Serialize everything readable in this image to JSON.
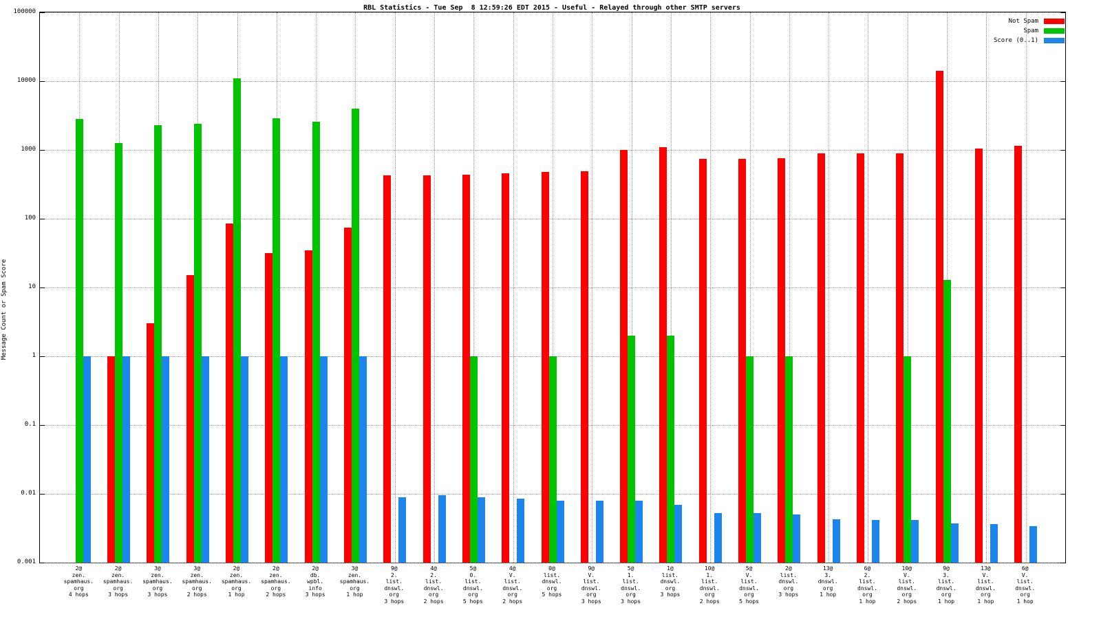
{
  "title": "RBL Statistics - Tue Sep  8 12:59:26 EDT 2015 - Useful - Relayed through other SMTP servers",
  "ylabel": "Message Count or Spam Score",
  "chart_data": {
    "type": "bar",
    "scale": "log",
    "title": "RBL Statistics - Tue Sep  8 12:59:26 EDT 2015 - Useful - Relayed through other SMTP servers",
    "xlabel": "",
    "ylabel": "Message Count or Spam Score",
    "ylim": [
      0.001,
      100000
    ],
    "yticks": [
      100000,
      10000,
      1000,
      100,
      10,
      1,
      0.1,
      0.01,
      0.001
    ],
    "grid": true,
    "legend_position": "top-right",
    "categories": [
      [
        "2@",
        "zen.",
        "spamhaus.",
        "org",
        "4 hops"
      ],
      [
        "2@",
        "zen.",
        "spamhaus.",
        "org",
        "3 hops"
      ],
      [
        "3@",
        "zen.",
        "spamhaus.",
        "org",
        "3 hops"
      ],
      [
        "3@",
        "zen.",
        "spamhaus.",
        "org",
        "2 hops"
      ],
      [
        "2@",
        "zen.",
        "spamhaus.",
        "org",
        "1 hop"
      ],
      [
        "2@",
        "zen.",
        "spamhaus.",
        "org",
        "2 hops"
      ],
      [
        "2@",
        "db.",
        "wpbl.",
        "info",
        "3 hops"
      ],
      [
        "3@",
        "zen.",
        "spamhaus.",
        "org",
        "1 hop"
      ],
      [
        "9@",
        "2.",
        "list.",
        "dnswl.",
        "org",
        "3 hops"
      ],
      [
        "4@",
        "2.",
        "list.",
        "dnswl.",
        "org",
        "2 hops"
      ],
      [
        "5@",
        "0.",
        "list.",
        "dnswl.",
        "org",
        "5 hops"
      ],
      [
        "4@",
        "V.",
        "list.",
        "dnswl.",
        "org",
        "2 hops"
      ],
      [
        "0@",
        "list.",
        "dnswl.",
        "org",
        "5 hops"
      ],
      [
        "9@",
        "V.",
        "list.",
        "dnswl.",
        "org",
        "3 hops"
      ],
      [
        "5@",
        "1.",
        "list.",
        "dnswl.",
        "org",
        "3 hops"
      ],
      [
        "1@",
        "list.",
        "dnswl.",
        "org",
        "3 hops"
      ],
      [
        "10@",
        "1.",
        "list.",
        "dnswl.",
        "org",
        "2 hops"
      ],
      [
        "5@",
        "V.",
        "list.",
        "dnswl.",
        "org",
        "5 hops"
      ],
      [
        "2@",
        "list.",
        "dnswl.",
        "org",
        "3 hops"
      ],
      [
        "13@",
        "3.",
        "dnswl.",
        "org",
        "1 hop"
      ],
      [
        "6@",
        "2.",
        "list.",
        "dnswl.",
        "org",
        "1 hop"
      ],
      [
        "10@",
        "V.",
        "list.",
        "dnswl.",
        "org",
        "2 hops"
      ],
      [
        "9@",
        "3.",
        "list.",
        "dnswl.",
        "org",
        "1 hop"
      ],
      [
        "13@",
        "V.",
        "list.",
        "dnswl.",
        "org",
        "1 hop"
      ],
      [
        "6@",
        "V.",
        "list.",
        "dnswl.",
        "org",
        "1 hop"
      ]
    ],
    "series": [
      {
        "name": "Not Spam",
        "color": "#ff0000",
        "values": [
          null,
          1,
          3,
          15,
          85,
          32,
          35,
          75,
          430,
          430,
          440,
          460,
          480,
          490,
          1000,
          1100,
          750,
          750,
          760,
          900,
          900,
          900,
          14000,
          1050,
          1150
        ]
      },
      {
        "name": "Spam",
        "color": "#00c400",
        "values": [
          2800,
          1250,
          2300,
          2400,
          11000,
          2900,
          2600,
          4000,
          null,
          null,
          1,
          null,
          1,
          null,
          2,
          2,
          null,
          1,
          1,
          null,
          null,
          1,
          13,
          null,
          null
        ]
      },
      {
        "name": "Score (0..1)",
        "color": "#1c86ee",
        "values": [
          1,
          1,
          1,
          1,
          1,
          1,
          1,
          1,
          0.009,
          0.0095,
          0.009,
          0.0085,
          0.008,
          0.008,
          0.008,
          0.007,
          0.0052,
          0.0052,
          0.005,
          0.0043,
          0.0042,
          0.0042,
          0.0037,
          0.0036,
          0.0034
        ]
      }
    ]
  }
}
